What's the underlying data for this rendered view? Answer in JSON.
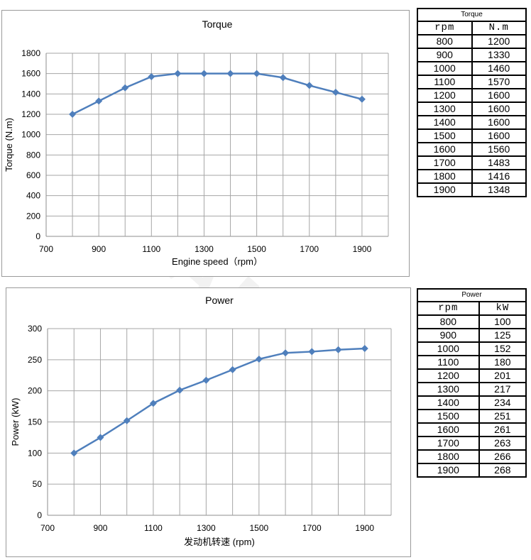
{
  "chart_data": [
    {
      "type": "line",
      "title": "Torque",
      "xlabel": "Engine speed（rpm）",
      "ylabel": "Torque (N.m)",
      "xlim": [
        700,
        2000
      ],
      "ylim": [
        0,
        1800
      ],
      "x_ticks": [
        700,
        900,
        1100,
        1300,
        1500,
        1700,
        1900
      ],
      "y_ticks": [
        0,
        200,
        400,
        600,
        800,
        1000,
        1200,
        1400,
        1600,
        1800
      ],
      "grid": true,
      "series": [
        {
          "x": [
            800,
            900,
            1000,
            1100,
            1200,
            1300,
            1400,
            1500,
            1600,
            1700,
            1800,
            1900
          ],
          "values": [
            1200,
            1330,
            1460,
            1570,
            1600,
            1600,
            1600,
            1600,
            1560,
            1483,
            1416,
            1348
          ],
          "color": "#4f7fbc"
        }
      ]
    },
    {
      "type": "line",
      "title": "Power",
      "xlabel": "发动机转速 (rpm)",
      "ylabel": "Power (kW)",
      "xlim": [
        700,
        2000
      ],
      "ylim": [
        0,
        300
      ],
      "x_ticks": [
        700,
        900,
        1100,
        1300,
        1500,
        1700,
        1900
      ],
      "y_ticks": [
        0,
        50,
        100,
        150,
        200,
        250,
        300
      ],
      "grid": true,
      "series": [
        {
          "x": [
            800,
            900,
            1000,
            1100,
            1200,
            1300,
            1400,
            1500,
            1600,
            1700,
            1800,
            1900
          ],
          "values": [
            100,
            125,
            152,
            180,
            201,
            217,
            234,
            251,
            261,
            263,
            266,
            268
          ],
          "color": "#4f7fbc"
        }
      ]
    }
  ],
  "tables": [
    {
      "title": "Torque",
      "columns": [
        "rpm",
        "N.m"
      ],
      "rows": [
        [
          "800",
          "1200"
        ],
        [
          "900",
          "1330"
        ],
        [
          "1000",
          "1460"
        ],
        [
          "1100",
          "1570"
        ],
        [
          "1200",
          "1600"
        ],
        [
          "1300",
          "1600"
        ],
        [
          "1400",
          "1600"
        ],
        [
          "1500",
          "1600"
        ],
        [
          "1600",
          "1560"
        ],
        [
          "1700",
          "1483"
        ],
        [
          "1800",
          "1416"
        ],
        [
          "1900",
          "1348"
        ]
      ]
    },
    {
      "title": "Power",
      "columns": [
        "rpm",
        "kW"
      ],
      "rows": [
        [
          "800",
          "100"
        ],
        [
          "900",
          "125"
        ],
        [
          "1000",
          "152"
        ],
        [
          "1100",
          "180"
        ],
        [
          "1200",
          "201"
        ],
        [
          "1300",
          "217"
        ],
        [
          "1400",
          "234"
        ],
        [
          "1500",
          "251"
        ],
        [
          "1600",
          "261"
        ],
        [
          "1700",
          "263"
        ],
        [
          "1800",
          "266"
        ],
        [
          "1900",
          "268"
        ]
      ]
    }
  ],
  "watermark": "DUSAMAG"
}
